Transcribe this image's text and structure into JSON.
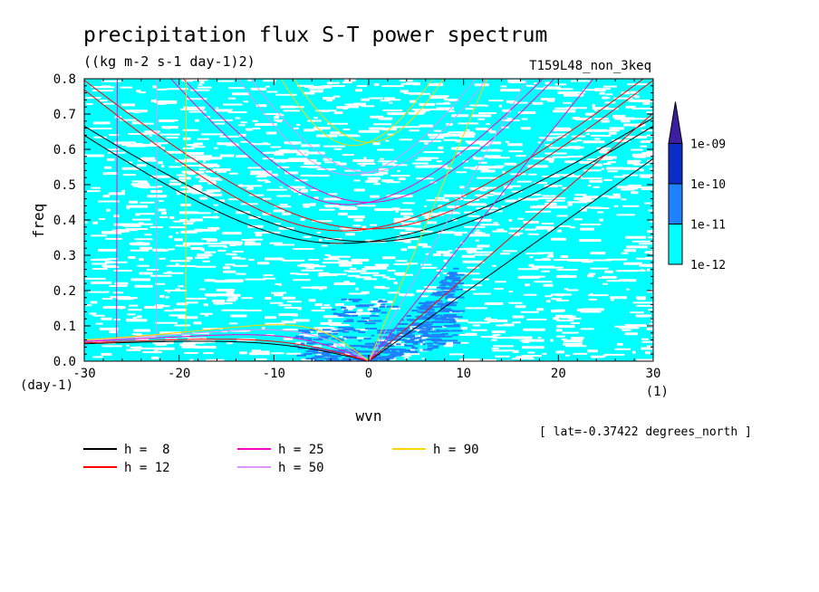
{
  "chart_data": {
    "type": "heatmap",
    "title": "precipitation flux S-T power spectrum",
    "units": "((kg m-2 s-1 day-1)2)",
    "run_label": "T159L48_non_3keq",
    "xlabel": "wvn",
    "x_unit": "(1)",
    "ylabel": "freq",
    "y_unit": "(day-1)",
    "xlim": [
      -30,
      30
    ],
    "ylim": [
      0,
      0.8
    ],
    "x_ticks": [
      -30,
      -20,
      -10,
      0,
      10,
      20,
      30
    ],
    "x_tick_labels": [
      "-30",
      "-20",
      "-10",
      "0",
      "10",
      "20",
      "30"
    ],
    "y_ticks": [
      0,
      0.1,
      0.2,
      0.3,
      0.4,
      0.5,
      0.6,
      0.7,
      0.8
    ],
    "y_tick_labels": [
      "0.0",
      "0.1",
      "0.2",
      "0.3",
      "0.4",
      "0.5",
      "0.6",
      "0.7",
      "0.8"
    ],
    "colorbar": {
      "levels": [
        "1e-12",
        "1e-11",
        "1e-10",
        "1e-09"
      ],
      "colors": [
        "#00ffff",
        "#1e82ff",
        "#0a2dc8",
        "#3c1ea0"
      ]
    },
    "field_color": "#00ffff",
    "enhanced_color": "#1e82ff",
    "footnote": "[ lat=-0.37422 degrees_north ]",
    "series": [
      {
        "name": "h =  8",
        "h": 8,
        "color": "#000000"
      },
      {
        "name": "h = 12",
        "h": 12,
        "color": "#ff0000"
      },
      {
        "name": "h = 25",
        "h": 25,
        "color": "#ff00c8"
      },
      {
        "name": "h = 50",
        "h": 50,
        "color": "#dc96ff"
      },
      {
        "name": "h = 90",
        "h": 90,
        "color": "#ffd200"
      }
    ]
  }
}
